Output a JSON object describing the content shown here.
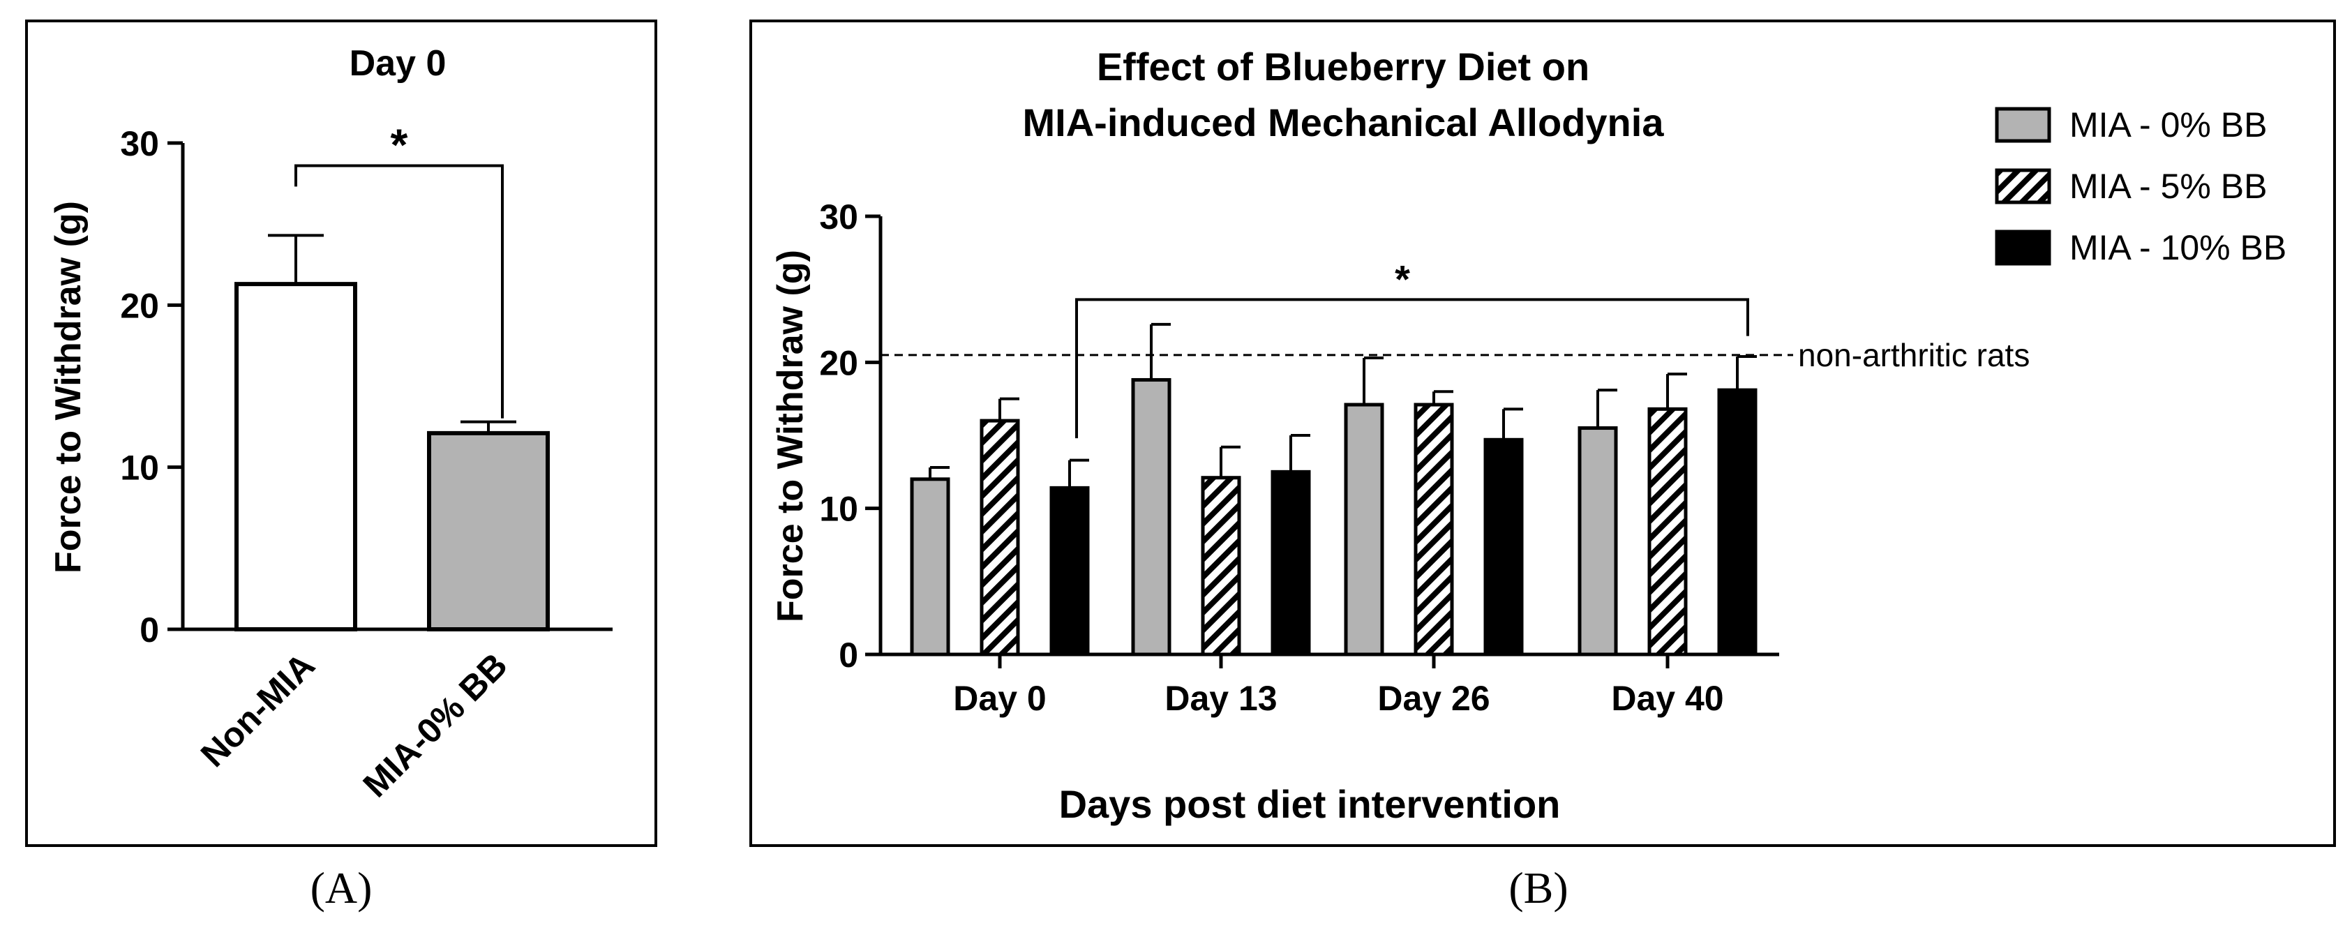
{
  "chart_data": [
    {
      "panel": "A",
      "type": "bar",
      "title": "Day 0",
      "xlabel": "",
      "ylabel": "Force to Withdraw (g)",
      "ylim": [
        0,
        30
      ],
      "yticks": [
        0,
        10,
        20,
        30
      ],
      "categories": [
        "Non-MIA",
        "MIA-0% BB"
      ],
      "values": [
        21.3,
        12.1
      ],
      "errors": [
        3.0,
        0.7
      ],
      "bar_fills": [
        "#ffffff",
        "#b3b3b3"
      ],
      "significance": "*",
      "panel_label": "A"
    },
    {
      "panel": "B",
      "type": "bar",
      "title": "Effect of Blueberry Diet on",
      "subtitle": "MIA-induced Mechanical Allodynia",
      "xlabel": "Days post diet intervention",
      "ylabel": "Force to Withdraw (g)",
      "ylim": [
        0,
        30
      ],
      "yticks": [
        0,
        10,
        20,
        30
      ],
      "categories": [
        "Day 0",
        "Day 13",
        "Day 26",
        "Day 40"
      ],
      "series": [
        {
          "name": "MIA - 0% BB",
          "pattern": "gray",
          "values": [
            12.0,
            18.8,
            17.1,
            15.5
          ],
          "errors": [
            0.8,
            3.8,
            3.2,
            2.6
          ]
        },
        {
          "name": "MIA - 5% BB",
          "pattern": "hatch",
          "values": [
            16.0,
            12.1,
            17.1,
            16.8
          ],
          "errors": [
            1.5,
            2.1,
            0.9,
            2.4
          ]
        },
        {
          "name": "MIA - 10% BB",
          "pattern": "black",
          "values": [
            11.4,
            12.5,
            14.7,
            18.1
          ],
          "errors": [
            1.9,
            2.5,
            2.1,
            2.3
          ]
        }
      ],
      "reference_line": {
        "value": 20.5,
        "label": "non-arthritic rats"
      },
      "significance": "*",
      "legend_position": "top-right",
      "panel_label": "B"
    }
  ],
  "panel_labels": [
    "(A)",
    "(B)"
  ]
}
